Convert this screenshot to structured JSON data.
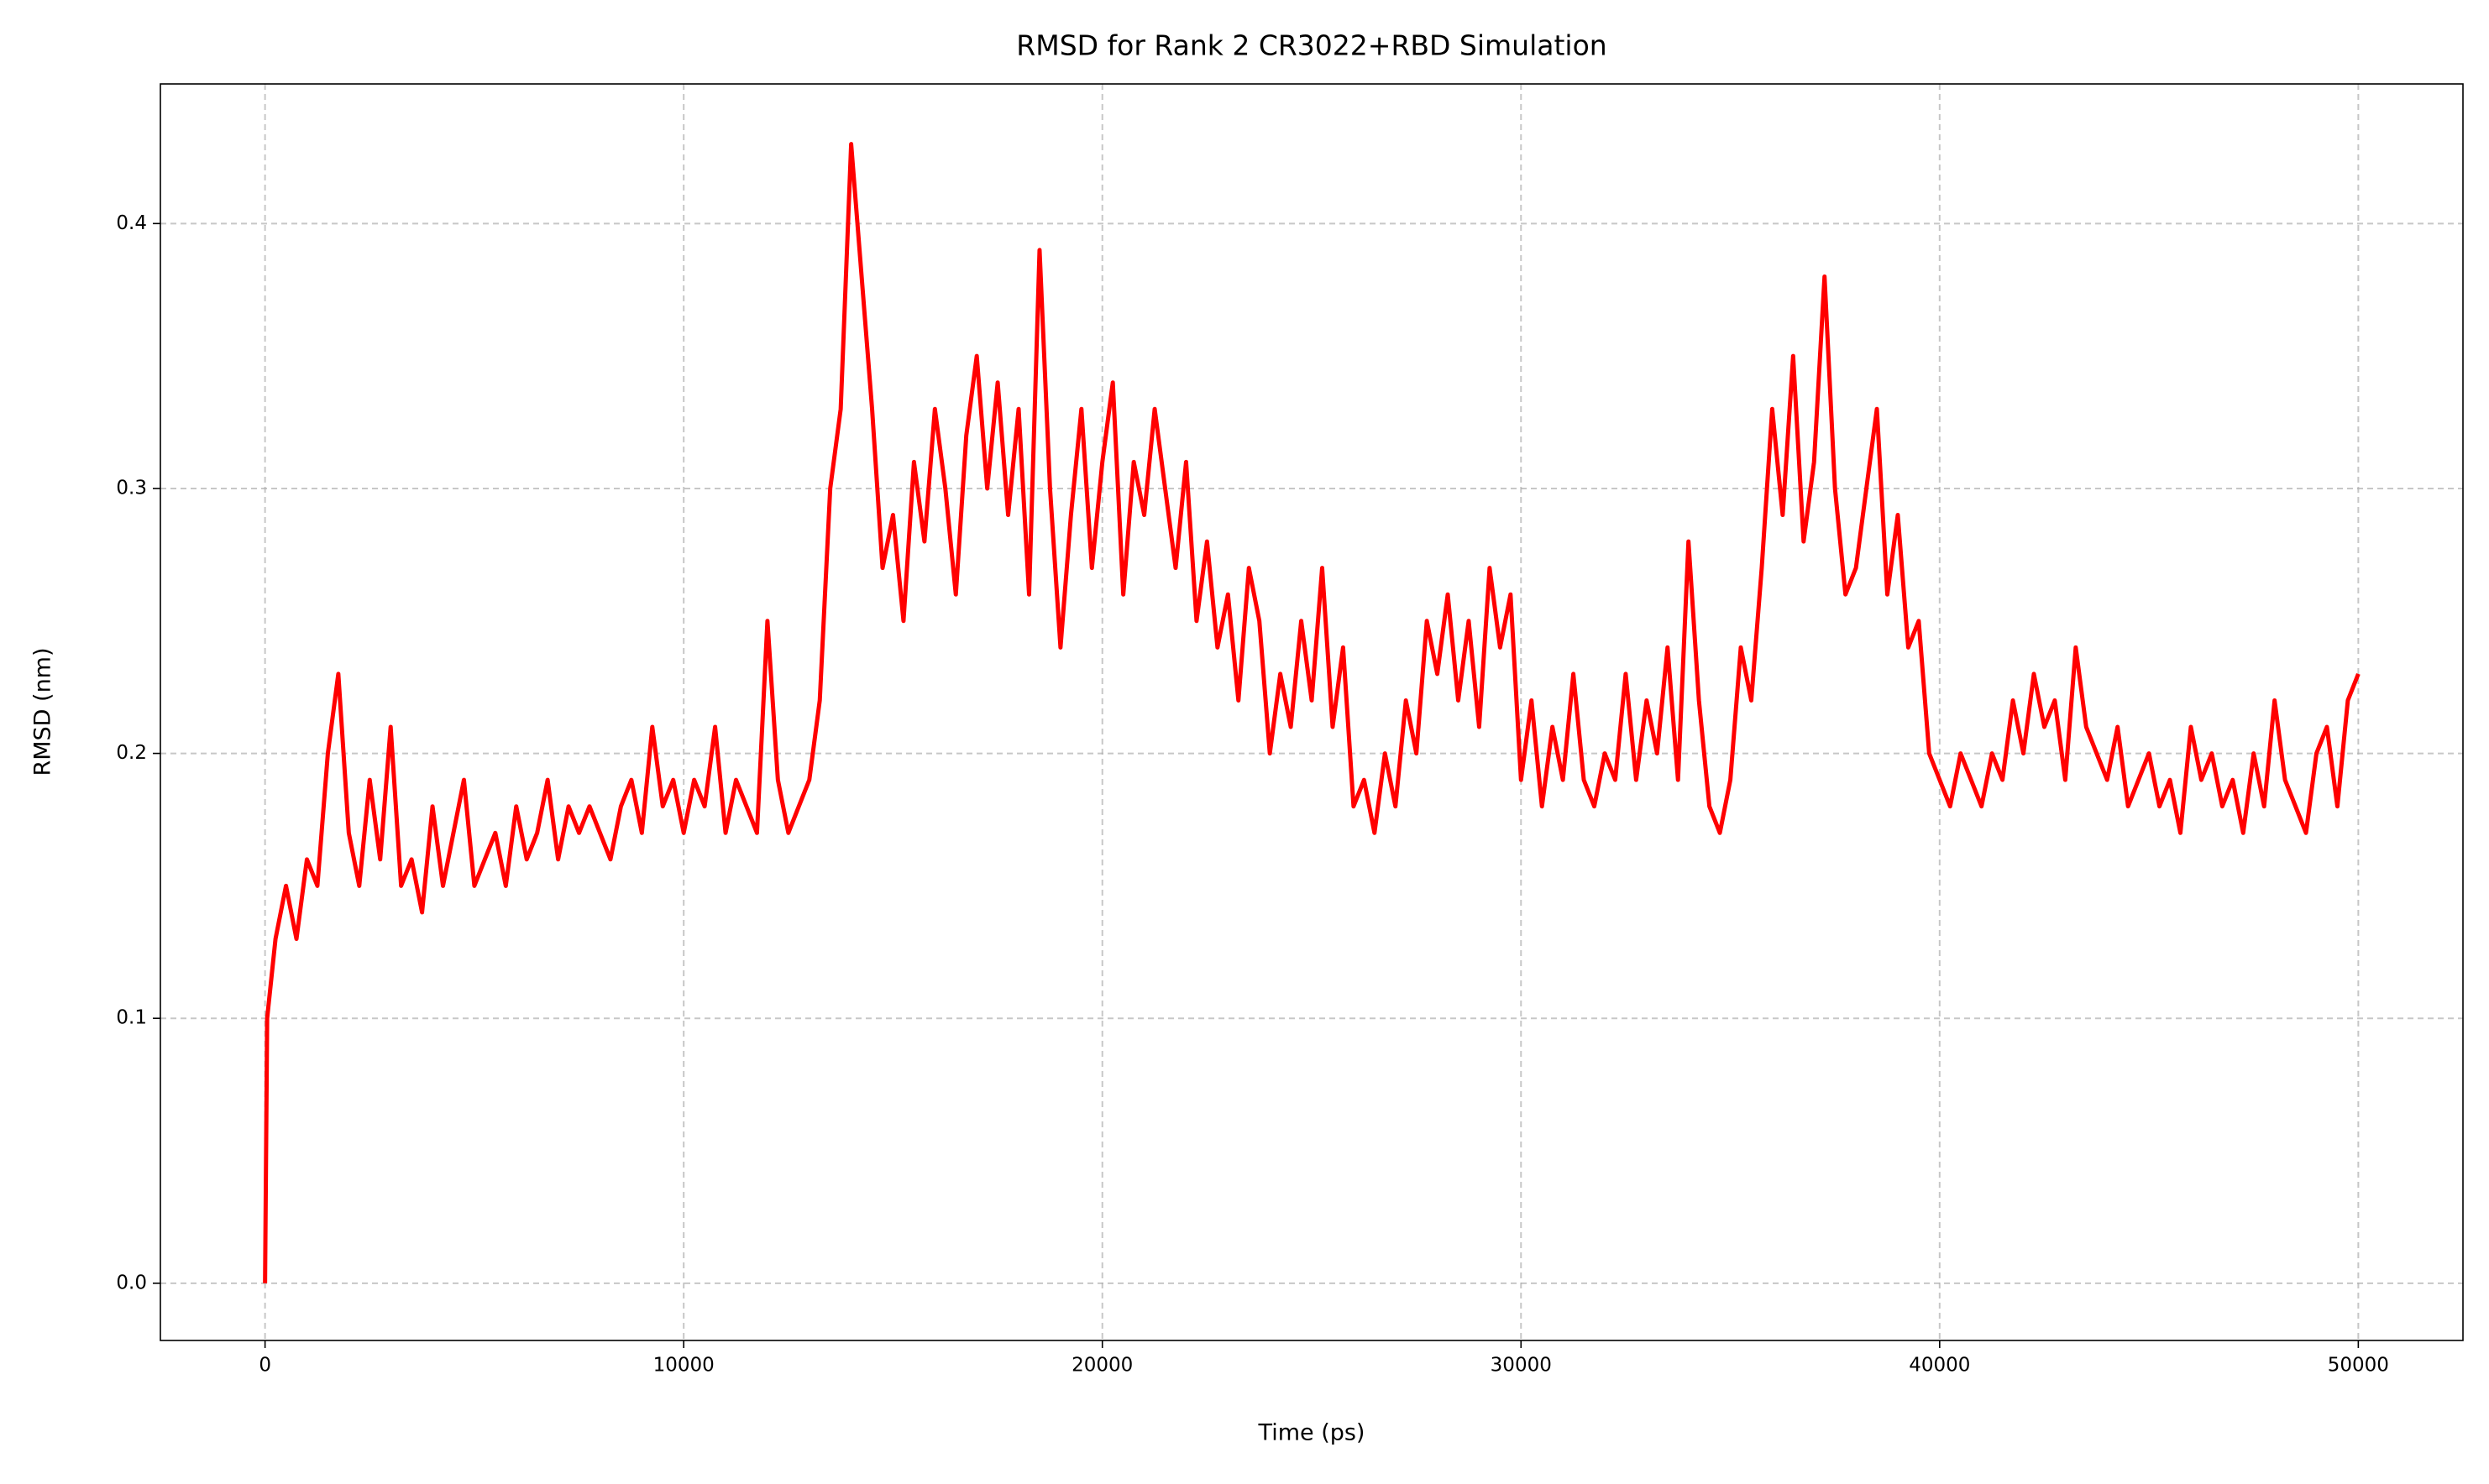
{
  "chart_data": {
    "type": "line",
    "title": "RMSD for Rank 2 CR3022+RBD Simulation",
    "x_label": "Time (ps)",
    "y_label": "RMSD (nm)",
    "color": "#ff0000",
    "grid": true,
    "xlim": [
      -2500,
      52500
    ],
    "ylim": [
      -0.0216,
      0.4527
    ],
    "xticks": [
      0,
      10000,
      20000,
      30000,
      40000,
      50000
    ],
    "yticks": [
      {
        "value": 0,
        "label": "0.0"
      },
      0.1,
      0.2,
      0.3,
      0.4
    ],
    "x": [
      0,
      50,
      250,
      500,
      750,
      1000,
      1250,
      1500,
      1750,
      2000,
      2250,
      2500,
      2750,
      3000,
      3250,
      3500,
      3750,
      4000,
      4250,
      4500,
      4750,
      5000,
      5250,
      5500,
      5750,
      6000,
      6250,
      6500,
      6750,
      7000,
      7250,
      7500,
      7750,
      8000,
      8250,
      8500,
      8750,
      9000,
      9250,
      9500,
      9750,
      10000,
      10250,
      10500,
      10750,
      11000,
      11250,
      11500,
      11750,
      12000,
      12250,
      12500,
      12750,
      13000,
      13250,
      13500,
      13750,
      14000,
      14250,
      14500,
      14750,
      15000,
      15250,
      15500,
      15750,
      16000,
      16250,
      16500,
      16750,
      17000,
      17250,
      17500,
      17750,
      18000,
      18250,
      18500,
      18750,
      19000,
      19250,
      19500,
      19750,
      20000,
      20250,
      20500,
      20750,
      21000,
      21250,
      21500,
      21750,
      22000,
      22250,
      22500,
      22750,
      23000,
      23250,
      23500,
      23750,
      24000,
      24250,
      24500,
      24750,
      25000,
      25250,
      25500,
      25750,
      26000,
      26250,
      26500,
      26750,
      27000,
      27250,
      27500,
      27750,
      28000,
      28250,
      28500,
      28750,
      29000,
      29250,
      29500,
      29750,
      30000,
      30250,
      30500,
      30750,
      31000,
      31250,
      31500,
      31750,
      32000,
      32250,
      32500,
      32750,
      33000,
      33250,
      33500,
      33750,
      34000,
      34250,
      34500,
      34750,
      35000,
      35250,
      35500,
      35750,
      36000,
      36250,
      36500,
      36750,
      37000,
      37250,
      37500,
      37750,
      38000,
      38250,
      38500,
      38750,
      39000,
      39250,
      39500,
      39750,
      40000,
      40250,
      40500,
      40750,
      41000,
      41250,
      41500,
      41750,
      42000,
      42250,
      42500,
      42750,
      43000,
      43250,
      43500,
      43750,
      44000,
      44250,
      44500,
      44750,
      45000,
      45250,
      45500,
      45750,
      46000,
      46250,
      46500,
      46750,
      47000,
      47250,
      47500,
      47750,
      48000,
      48250,
      48500,
      48750,
      49000,
      49250,
      49500,
      49750,
      50000
    ],
    "values": [
      0.0,
      0.1,
      0.13,
      0.15,
      0.13,
      0.16,
      0.15,
      0.2,
      0.23,
      0.17,
      0.15,
      0.19,
      0.16,
      0.21,
      0.15,
      0.16,
      0.14,
      0.18,
      0.15,
      0.17,
      0.19,
      0.15,
      0.16,
      0.17,
      0.15,
      0.18,
      0.16,
      0.17,
      0.19,
      0.16,
      0.18,
      0.17,
      0.18,
      0.17,
      0.16,
      0.18,
      0.19,
      0.17,
      0.21,
      0.18,
      0.19,
      0.17,
      0.19,
      0.18,
      0.21,
      0.17,
      0.19,
      0.18,
      0.17,
      0.25,
      0.19,
      0.17,
      0.18,
      0.19,
      0.22,
      0.3,
      0.33,
      0.43,
      0.38,
      0.33,
      0.27,
      0.29,
      0.25,
      0.31,
      0.28,
      0.33,
      0.3,
      0.26,
      0.32,
      0.35,
      0.3,
      0.34,
      0.29,
      0.33,
      0.26,
      0.39,
      0.3,
      0.24,
      0.29,
      0.33,
      0.27,
      0.31,
      0.34,
      0.26,
      0.31,
      0.29,
      0.33,
      0.3,
      0.27,
      0.31,
      0.25,
      0.28,
      0.24,
      0.26,
      0.22,
      0.27,
      0.25,
      0.2,
      0.23,
      0.21,
      0.25,
      0.22,
      0.27,
      0.21,
      0.24,
      0.18,
      0.19,
      0.17,
      0.2,
      0.18,
      0.22,
      0.2,
      0.25,
      0.23,
      0.26,
      0.22,
      0.25,
      0.21,
      0.27,
      0.24,
      0.26,
      0.19,
      0.22,
      0.18,
      0.21,
      0.19,
      0.23,
      0.19,
      0.18,
      0.2,
      0.19,
      0.23,
      0.19,
      0.22,
      0.2,
      0.24,
      0.19,
      0.28,
      0.22,
      0.18,
      0.17,
      0.19,
      0.24,
      0.22,
      0.27,
      0.33,
      0.29,
      0.35,
      0.28,
      0.31,
      0.38,
      0.3,
      0.26,
      0.27,
      0.3,
      0.33,
      0.26,
      0.29,
      0.24,
      0.25,
      0.2,
      0.19,
      0.18,
      0.2,
      0.19,
      0.18,
      0.2,
      0.19,
      0.22,
      0.2,
      0.23,
      0.21,
      0.22,
      0.19,
      0.24,
      0.21,
      0.2,
      0.19,
      0.21,
      0.18,
      0.19,
      0.2,
      0.18,
      0.19,
      0.17,
      0.21,
      0.19,
      0.2,
      0.18,
      0.19,
      0.17,
      0.2,
      0.18,
      0.22,
      0.19,
      0.18,
      0.17,
      0.2,
      0.21,
      0.18,
      0.22,
      0.23
    ]
  }
}
